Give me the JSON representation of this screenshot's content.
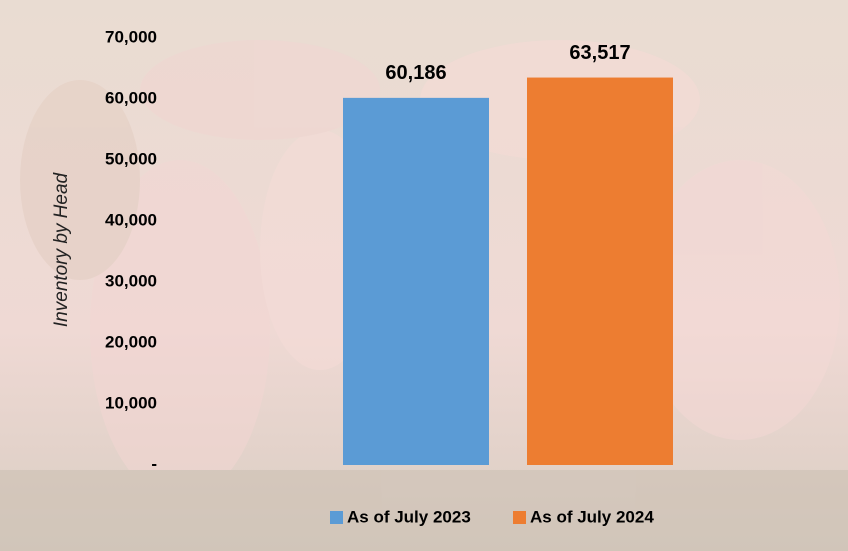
{
  "chart_data": {
    "type": "bar",
    "y_label": "Inventory by Head",
    "series": [
      {
        "name": "As of July 2023",
        "color": "#5b9bd5",
        "values": [
          60186
        ],
        "value_labels": [
          "60,186"
        ]
      },
      {
        "name": "As of July 2024",
        "color": "#ed7d31",
        "values": [
          63517
        ],
        "value_labels": [
          "63,517"
        ]
      }
    ],
    "ylim": [
      0,
      70000
    ],
    "yticks": [
      {
        "value": 0,
        "label": "-"
      },
      {
        "value": 10000,
        "label": "10,000"
      },
      {
        "value": 20000,
        "label": "20,000"
      },
      {
        "value": 30000,
        "label": "30,000"
      },
      {
        "value": 40000,
        "label": "40,000"
      },
      {
        "value": 50000,
        "label": "50,000"
      },
      {
        "value": 60000,
        "label": "60,000"
      },
      {
        "value": 70000,
        "label": "70,000"
      }
    ],
    "grid": false,
    "legend": "bottom"
  }
}
